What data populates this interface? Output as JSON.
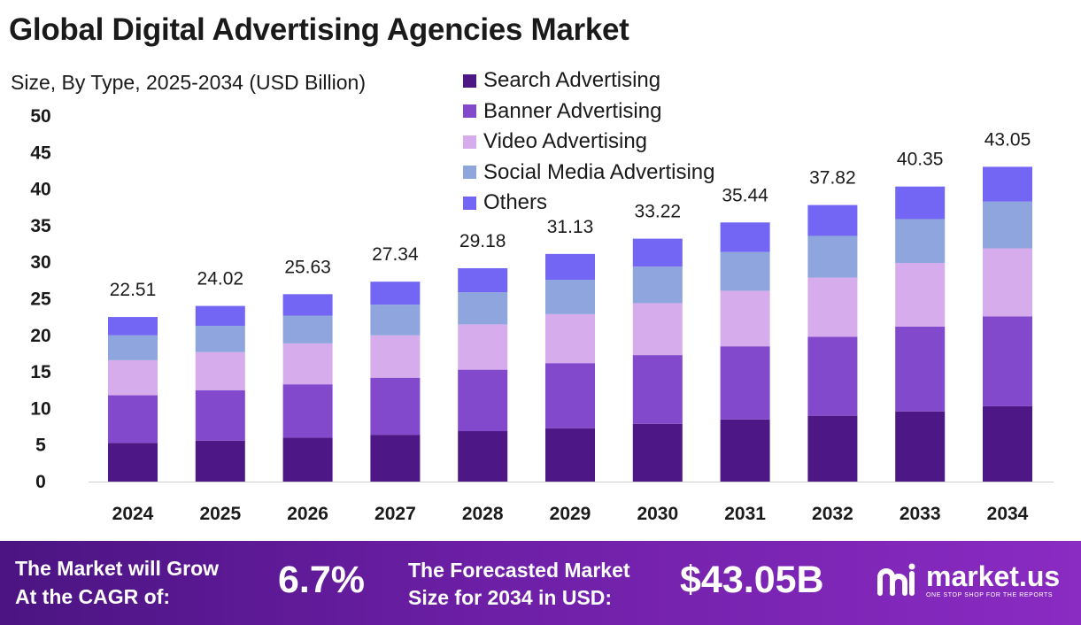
{
  "title": "Global Digital Advertising Agencies Market",
  "subtitle": "Size, By Type, 2025-2034 (USD Billion)",
  "colors": {
    "search": "#4d1886",
    "banner": "#8249cc",
    "video": "#d6acec",
    "social": "#8fa5dd",
    "others": "#7366f5",
    "footer_start": "#4b1482",
    "footer_end": "#8a2bc2"
  },
  "chart_data": {
    "type": "bar",
    "stacked": true,
    "title": "Global Digital Advertising Agencies Market",
    "subtitle": "Size, By Type, 2025-2034 (USD Billion)",
    "xlabel": "",
    "ylabel": "",
    "ylim": [
      0,
      50
    ],
    "yticks": [
      0,
      5,
      10,
      15,
      20,
      25,
      30,
      35,
      40,
      45,
      50
    ],
    "categories": [
      "2024",
      "2025",
      "2026",
      "2027",
      "2028",
      "2029",
      "2030",
      "2031",
      "2032",
      "2033",
      "2034"
    ],
    "totals": [
      22.51,
      24.02,
      25.63,
      27.34,
      29.18,
      31.13,
      33.22,
      35.44,
      37.82,
      40.35,
      43.05
    ],
    "total_labels": [
      "22.51",
      "24.02",
      "25.63",
      "27.34",
      "29.18",
      "31.13",
      "33.22",
      "35.44",
      "37.82",
      "40.35",
      "43.05"
    ],
    "legend_position": "top-right",
    "series": [
      {
        "name": "Search Advertising",
        "color": "#4d1886",
        "values": [
          5.3,
          5.6,
          6.0,
          6.4,
          6.9,
          7.3,
          7.9,
          8.5,
          9.0,
          9.6,
          10.3
        ]
      },
      {
        "name": "Banner Advertising",
        "color": "#8249cc",
        "values": [
          6.5,
          6.9,
          7.3,
          7.8,
          8.4,
          8.9,
          9.4,
          10.0,
          10.8,
          11.6,
          12.3
        ]
      },
      {
        "name": "Video Advertising",
        "color": "#d6acec",
        "values": [
          4.8,
          5.2,
          5.6,
          5.8,
          6.2,
          6.7,
          7.1,
          7.6,
          8.1,
          8.7,
          9.3
        ]
      },
      {
        "name": "Social Media Advertising",
        "color": "#8fa5dd",
        "values": [
          3.4,
          3.6,
          3.8,
          4.2,
          4.4,
          4.7,
          5.0,
          5.3,
          5.7,
          6.0,
          6.4
        ]
      },
      {
        "name": "Others",
        "color": "#7366f5",
        "values": [
          2.51,
          2.72,
          2.93,
          3.14,
          3.28,
          3.53,
          3.82,
          4.04,
          4.22,
          4.45,
          4.75
        ]
      }
    ]
  },
  "footer": {
    "cagr_label_line1": "The Market will Grow",
    "cagr_label_line2": "At the CAGR of:",
    "cagr_value": "6.7%",
    "size_label_line1": "The Forecasted Market",
    "size_label_line2": "Size for 2034 in USD:",
    "size_value": "$43.05B",
    "brand_name": "market.us",
    "brand_tagline": "ONE STOP SHOP FOR THE REPORTS"
  }
}
